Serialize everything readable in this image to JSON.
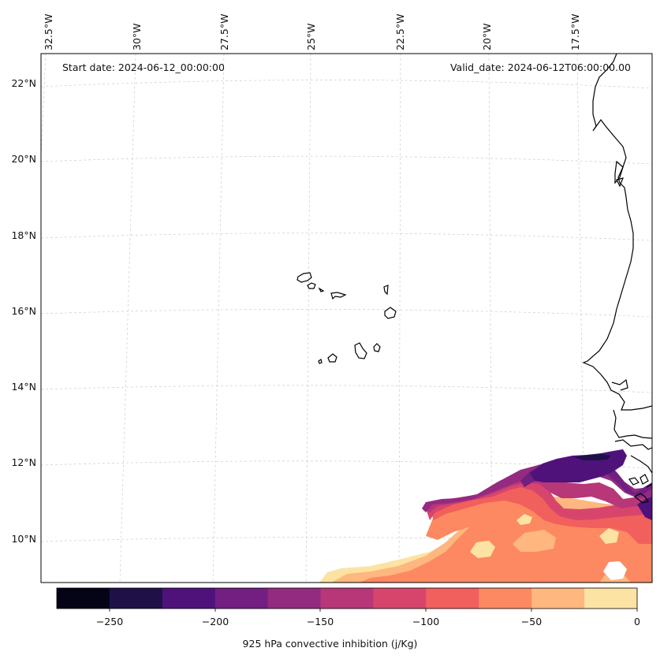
{
  "header": {
    "start_date": "Start date: 2024-06-12_00:00:00",
    "valid_date": "Valid_date: 2024-06-12T06:00:00.00"
  },
  "map": {
    "longitude_labels": [
      "32.5°W",
      "30°W",
      "27.5°W",
      "25°W",
      "22.5°W",
      "20°W",
      "17.5°W"
    ],
    "latitude_labels": [
      "22°N",
      "20°N",
      "18°N",
      "16°N",
      "14°N",
      "12°N",
      "10°N"
    ],
    "gridlines": true,
    "coastline_color": "#000000"
  },
  "colorbar": {
    "label": "925 hPa convective inhibition (j/Kg)",
    "ticks": [
      "−250",
      "−200",
      "−150",
      "−100",
      "−50",
      "0"
    ],
    "colors": [
      "#050417",
      "#1f1147",
      "#4f127b",
      "#721f81",
      "#932b80",
      "#b73779",
      "#d8456c",
      "#f1605d",
      "#fc8961",
      "#feb77e",
      "#fde3a3"
    ]
  },
  "colors": {
    "cin_0_25": "#fde3a3",
    "cin_25_50": "#feb77e",
    "cin_50_75": "#fc8961",
    "cin_75_100": "#f1605d",
    "cin_100_125": "#d8456c",
    "cin_125_150": "#b73779",
    "cin_150_175": "#932b80",
    "cin_175_200": "#721f81",
    "cin_200_225": "#4f127b",
    "cin_225_250": "#1f1147"
  }
}
